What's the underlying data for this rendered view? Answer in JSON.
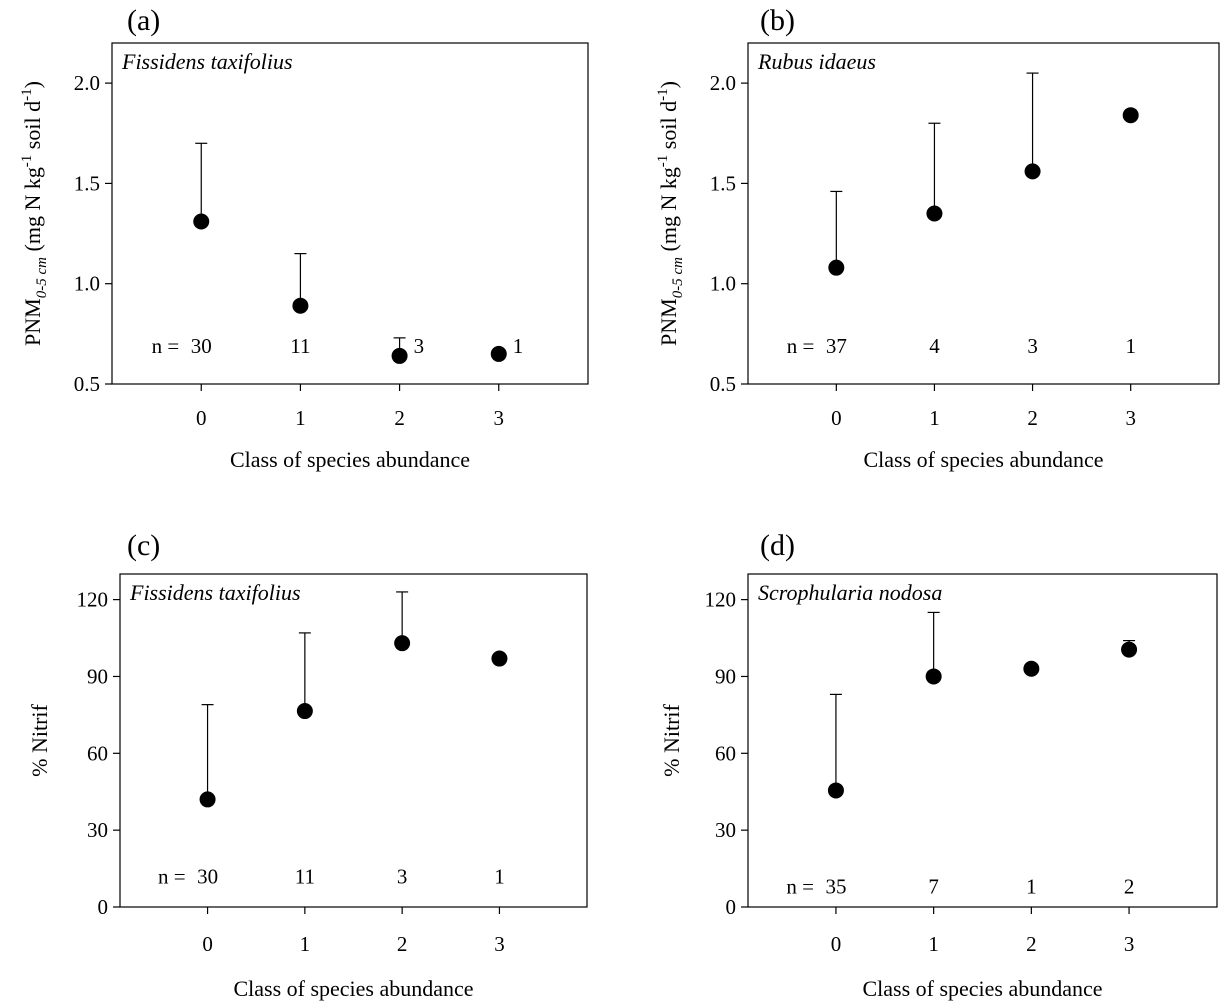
{
  "chart_data": [
    {
      "type": "scatter",
      "panel_label": "(a)",
      "species": "Fissidens taxifolius",
      "xlabel": "Class of species abundance",
      "ylabel": {
        "base": "PNM",
        "sub": "0-5 cm",
        "unit_a": " (mg N kg",
        "sup": "-1",
        "unit_b": " soil d",
        "sup2": "-1",
        "close": ")"
      },
      "x_ticks": [
        "0",
        "1",
        "2",
        "3"
      ],
      "y_ticks": [
        "0.5",
        "1.0",
        "1.5",
        "2.0"
      ],
      "xlim": [
        -0.9,
        3.9
      ],
      "ylim": [
        0.5,
        2.2
      ],
      "points": [
        {
          "x": 0,
          "y": 1.31,
          "err": 1.7
        },
        {
          "x": 1,
          "y": 0.89,
          "err": 1.15
        },
        {
          "x": 2,
          "y": 0.64,
          "err": 0.73
        },
        {
          "x": 3,
          "y": 0.65,
          "err": null
        }
      ],
      "n_prefix": "n =",
      "n_values": [
        "30",
        "11",
        "3",
        "1"
      ],
      "n_y": 0.69
    },
    {
      "type": "scatter",
      "panel_label": "(b)",
      "species": "Rubus  idaeus",
      "xlabel": "Class of species abundance",
      "ylabel": {
        "base": "PNM",
        "sub": "0-5 cm",
        "unit_a": " (mg N kg",
        "sup": "-1",
        "unit_b": " soil d",
        "sup2": "-1",
        "close": ")"
      },
      "x_ticks": [
        "0",
        "1",
        "2",
        "3"
      ],
      "y_ticks": [
        "0.5",
        "1.0",
        "1.5",
        "2.0"
      ],
      "xlim": [
        -0.9,
        3.9
      ],
      "ylim": [
        0.5,
        2.2
      ],
      "points": [
        {
          "x": 0,
          "y": 1.08,
          "err": 1.46
        },
        {
          "x": 1,
          "y": 1.35,
          "err": 1.8
        },
        {
          "x": 2,
          "y": 1.56,
          "err": 2.05
        },
        {
          "x": 3,
          "y": 1.84,
          "err": null
        }
      ],
      "n_prefix": "n =",
      "n_values": [
        "37",
        "4",
        "3",
        "1"
      ],
      "n_y": 0.69
    },
    {
      "type": "scatter",
      "panel_label": "(c)",
      "species": "Fissidens taxifolius",
      "xlabel": "Class of species abundance",
      "ylabel": {
        "base": "% Nitrif"
      },
      "x_ticks": [
        "0",
        "1",
        "2",
        "3"
      ],
      "y_ticks": [
        "0",
        "30",
        "60",
        "90",
        "120"
      ],
      "xlim": [
        -0.9,
        3.9
      ],
      "ylim": [
        0,
        130
      ],
      "points": [
        {
          "x": 0,
          "y": 42,
          "err": 79
        },
        {
          "x": 1,
          "y": 76.5,
          "err": 107
        },
        {
          "x": 2,
          "y": 103,
          "err": 123
        },
        {
          "x": 3,
          "y": 97,
          "err": null
        }
      ],
      "n_prefix": "n =",
      "n_values": [
        "30",
        "11",
        "3",
        "1"
      ],
      "n_y": 12
    },
    {
      "type": "scatter",
      "panel_label": "(d)",
      "species": "Scrophularia nodosa",
      "xlabel": "Class of species abundance",
      "ylabel": {
        "base": "% Nitrif"
      },
      "x_ticks": [
        "0",
        "1",
        "2",
        "3"
      ],
      "y_ticks": [
        "0",
        "30",
        "60",
        "90",
        "120"
      ],
      "xlim": [
        -0.9,
        3.9
      ],
      "ylim": [
        0,
        130
      ],
      "points": [
        {
          "x": 0,
          "y": 45.5,
          "err": 83
        },
        {
          "x": 1,
          "y": 90,
          "err": 115
        },
        {
          "x": 2,
          "y": 93,
          "err": null
        },
        {
          "x": 3,
          "y": 100.5,
          "err": 104
        }
      ],
      "n_prefix": "n =",
      "n_values": [
        "35",
        "7",
        "1",
        "2"
      ],
      "n_y": 8
    }
  ]
}
